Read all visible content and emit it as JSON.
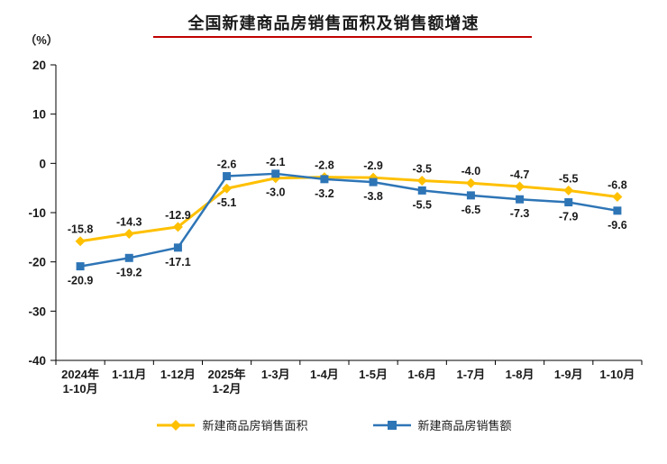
{
  "title": "全国新建商品房销售面积及销售额增速",
  "accent": {
    "title_underline": "#C00000",
    "axis_color": "#000000",
    "text_color": "#1a1a1a"
  },
  "chart_data": {
    "type": "line",
    "title": "全国新建商品房销售面积及销售额增速",
    "ylabel": "（%）",
    "xlabel": "",
    "ylim": [
      -40,
      20
    ],
    "ytick_step": 10,
    "grid": false,
    "legend_position": "bottom",
    "categories": [
      "2024年\n1-10月",
      "1-11月",
      "1-12月",
      "2025年\n1-2月",
      "1-3月",
      "1-4月",
      "1-5月",
      "1-6月",
      "1-7月",
      "1-8月",
      "1-9月",
      "1-10月"
    ],
    "series": [
      {
        "name": "新建商品房销售面积",
        "color": "#FFC000",
        "marker": "diamond",
        "values": [
          -15.8,
          -14.3,
          -12.9,
          -5.1,
          -3.0,
          -2.8,
          -2.9,
          -3.5,
          -4.0,
          -4.7,
          -5.5,
          -6.8
        ]
      },
      {
        "name": "新建商品房销售额",
        "color": "#2E75B6",
        "marker": "square",
        "values": [
          -20.9,
          -19.2,
          -17.1,
          -2.6,
          -2.1,
          -3.2,
          -3.8,
          -5.5,
          -6.5,
          -7.3,
          -7.9,
          -9.6
        ]
      }
    ]
  }
}
